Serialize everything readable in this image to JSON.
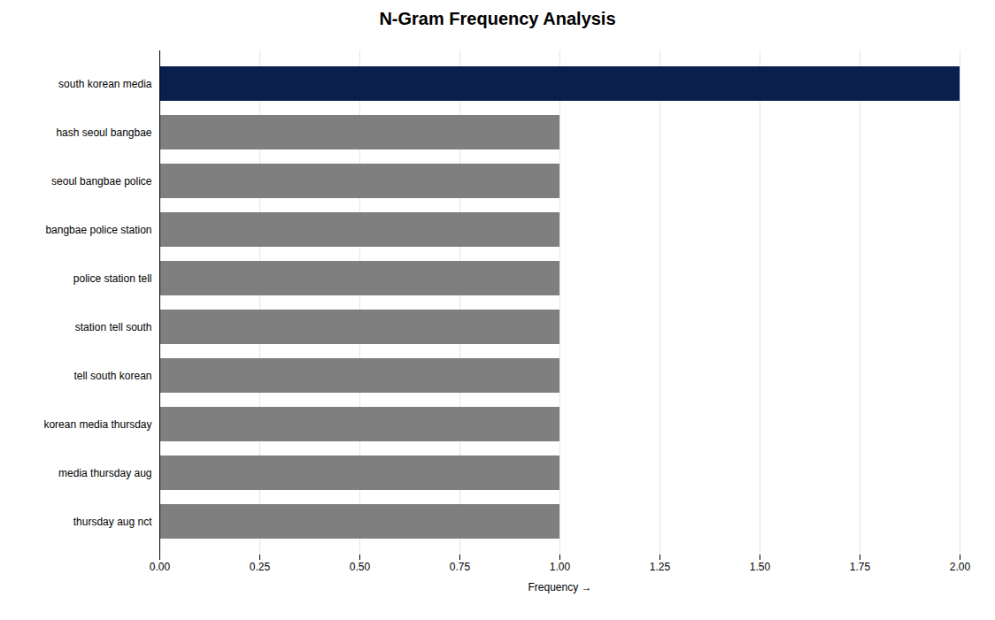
{
  "chart_data": {
    "type": "bar",
    "orientation": "horizontal",
    "title": "N-Gram Frequency Analysis",
    "categories": [
      "thursday aug nct",
      "media thursday aug",
      "korean media thursday",
      "tell south korean",
      "station tell south",
      "police station tell",
      "bangbae police station",
      "seoul bangbae police",
      "hash seoul bangbae",
      "south korean media"
    ],
    "values": [
      1,
      1,
      1,
      1,
      1,
      1,
      1,
      1,
      1,
      2
    ],
    "colors": [
      "#7f7f7f",
      "#7f7f7f",
      "#7f7f7f",
      "#7f7f7f",
      "#7f7f7f",
      "#7f7f7f",
      "#7f7f7f",
      "#7f7f7f",
      "#7f7f7f",
      "#0a1f4e"
    ],
    "xlabel": "Frequency",
    "xlim": [
      0,
      2.0
    ],
    "xticks": [
      {
        "value": 0.0,
        "label": "0.00"
      },
      0.25,
      {
        "value": 0.5,
        "label": "0.50"
      },
      0.75,
      {
        "value": 1.0,
        "label": "1.00"
      },
      1.25,
      {
        "value": 1.5,
        "label": "1.50"
      },
      1.75,
      {
        "value": 2.0,
        "label": "2.00"
      }
    ],
    "grid": true
  }
}
